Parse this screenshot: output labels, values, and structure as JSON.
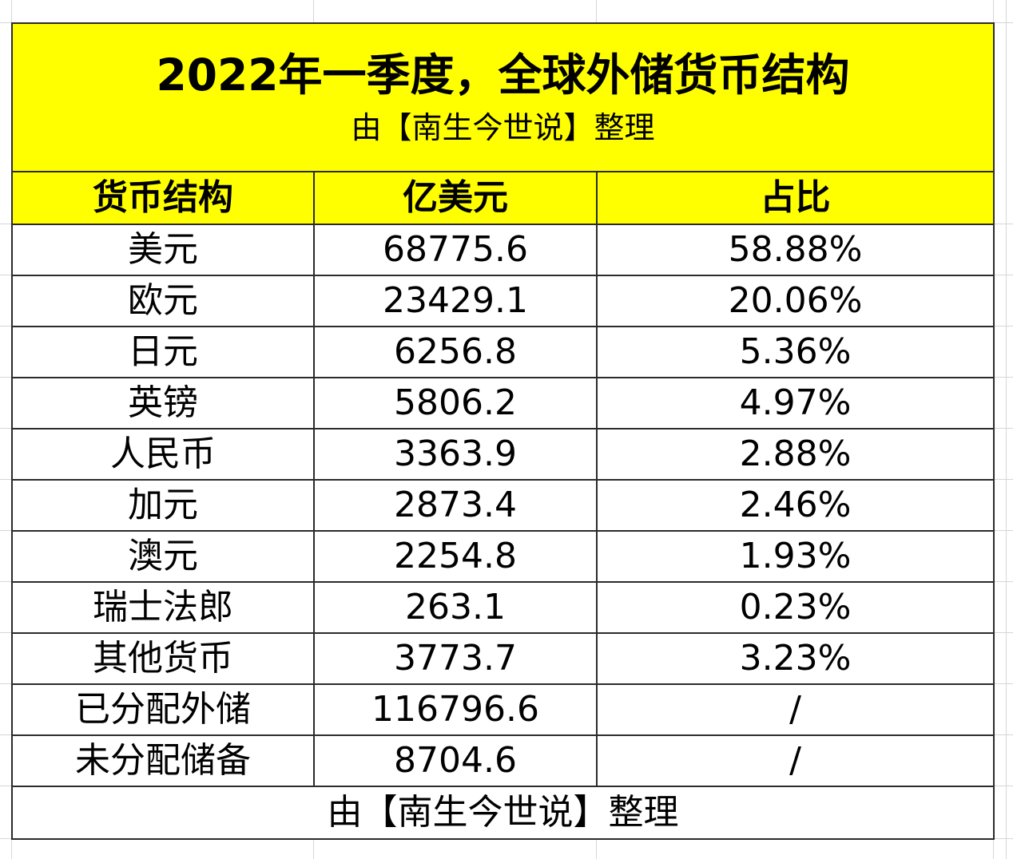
{
  "colors": {
    "fill_yellow": "#FFFF00",
    "text": "#000000",
    "border": "#2B2B2B",
    "gridline": "#D6D6D6"
  },
  "chart_data": {
    "type": "table",
    "title": "2022年一季度，全球外储货币结构",
    "subtitle": "由【南生今世说】整理",
    "columns": [
      "货币结构",
      "亿美元",
      "占比"
    ],
    "rows": [
      [
        "美元",
        "68775.6",
        "58.88%"
      ],
      [
        "欧元",
        "23429.1",
        "20.06%"
      ],
      [
        "日元",
        "6256.8",
        "5.36%"
      ],
      [
        "英镑",
        "5806.2",
        "4.97%"
      ],
      [
        "人民币",
        "3363.9",
        "2.88%"
      ],
      [
        "加元",
        "2873.4",
        "2.46%"
      ],
      [
        "澳元",
        "2254.8",
        "1.93%"
      ],
      [
        "瑞士法郎",
        "263.1",
        "0.23%"
      ],
      [
        "其他货币",
        "3773.7",
        "3.23%"
      ],
      [
        "已分配外储",
        "116796.6",
        "/"
      ],
      [
        "未分配储备",
        "8704.6",
        "/"
      ]
    ],
    "footer": "由【南生今世说】整理"
  }
}
